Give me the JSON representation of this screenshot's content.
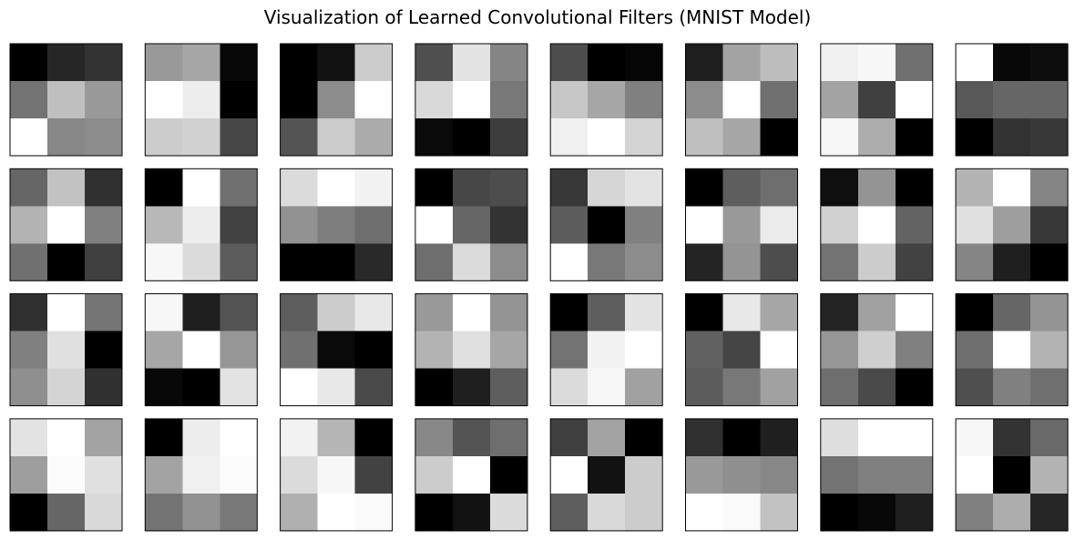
{
  "figure": {
    "title": "Visualization of Learned Convolutional Filters (MNIST Model)"
  },
  "chart_data": {
    "type": "heatmap",
    "title": "Visualization of Learned Convolutional Filters (MNIST Model)",
    "colormap": "gray",
    "axes": "off",
    "rows": 4,
    "cols": 8,
    "filter_size": [
      3,
      3
    ],
    "intensity_scale": "per-filter, 0 = black, 1 = white",
    "filters": [
      [
        [
          0.0,
          0.15,
          0.2
        ],
        [
          0.45,
          0.75,
          0.6
        ],
        [
          1.0,
          0.53,
          0.55
        ]
      ],
      [
        [
          0.6,
          0.65,
          0.03
        ],
        [
          1.0,
          0.93,
          0.0
        ],
        [
          0.8,
          0.82,
          0.28
        ]
      ],
      [
        [
          0.0,
          0.07,
          0.8
        ],
        [
          0.0,
          0.55,
          1.0
        ],
        [
          0.33,
          0.8,
          0.67
        ]
      ],
      [
        [
          0.31,
          0.89,
          0.52
        ],
        [
          0.85,
          1.0,
          0.47
        ],
        [
          0.04,
          0.0,
          0.24
        ]
      ],
      [
        [
          0.3,
          0.0,
          0.02
        ],
        [
          0.78,
          0.65,
          0.5
        ],
        [
          0.94,
          1.0,
          0.83
        ]
      ],
      [
        [
          0.12,
          0.64,
          0.74
        ],
        [
          0.55,
          1.0,
          0.44
        ],
        [
          0.75,
          0.65,
          0.0
        ]
      ],
      [
        [
          0.94,
          0.97,
          0.44
        ],
        [
          0.64,
          0.25,
          1.0
        ],
        [
          0.97,
          0.68,
          0.0
        ]
      ],
      [
        [
          1.0,
          0.03,
          0.05
        ],
        [
          0.35,
          0.4,
          0.4
        ],
        [
          0.0,
          0.2,
          0.22
        ]
      ],
      [
        [
          0.4,
          0.76,
          0.19
        ],
        [
          0.7,
          1.0,
          0.5
        ],
        [
          0.44,
          0.0,
          0.25
        ]
      ],
      [
        [
          0.0,
          1.0,
          0.44
        ],
        [
          0.72,
          0.93,
          0.26
        ],
        [
          0.97,
          0.86,
          0.36
        ]
      ],
      [
        [
          0.86,
          1.0,
          0.95
        ],
        [
          0.57,
          0.49,
          0.43
        ],
        [
          0.0,
          0.0,
          0.16
        ]
      ],
      [
        [
          0.0,
          0.28,
          0.3
        ],
        [
          1.0,
          0.4,
          0.2
        ],
        [
          0.43,
          0.86,
          0.55
        ]
      ],
      [
        [
          0.22,
          0.84,
          0.89
        ],
        [
          0.36,
          0.0,
          0.5
        ],
        [
          1.0,
          0.47,
          0.55
        ]
      ],
      [
        [
          0.0,
          0.37,
          0.43
        ],
        [
          1.0,
          0.6,
          0.92
        ],
        [
          0.14,
          0.58,
          0.3
        ]
      ],
      [
        [
          0.06,
          0.58,
          0.0
        ],
        [
          0.82,
          1.0,
          0.39
        ],
        [
          0.45,
          0.8,
          0.26
        ]
      ],
      [
        [
          0.7,
          1.0,
          0.52
        ],
        [
          0.88,
          0.62,
          0.22
        ],
        [
          0.52,
          0.12,
          0.0
        ]
      ],
      [
        [
          0.19,
          1.0,
          0.46
        ],
        [
          0.5,
          0.88,
          0.0
        ],
        [
          0.56,
          0.83,
          0.19
        ]
      ],
      [
        [
          0.97,
          0.12,
          0.33
        ],
        [
          0.65,
          1.0,
          0.59
        ],
        [
          0.03,
          0.0,
          0.89
        ]
      ],
      [
        [
          0.37,
          0.8,
          0.91
        ],
        [
          0.44,
          0.04,
          0.0
        ],
        [
          1.0,
          0.91,
          0.29
        ]
      ],
      [
        [
          0.6,
          1.0,
          0.58
        ],
        [
          0.7,
          0.88,
          0.65
        ],
        [
          0.0,
          0.12,
          0.37
        ]
      ],
      [
        [
          0.0,
          0.37,
          0.89
        ],
        [
          0.45,
          0.95,
          1.0
        ],
        [
          0.86,
          0.97,
          0.63
        ]
      ],
      [
        [
          0.0,
          0.91,
          0.65
        ],
        [
          0.38,
          0.27,
          1.0
        ],
        [
          0.36,
          0.47,
          0.63
        ]
      ],
      [
        [
          0.14,
          0.63,
          1.0
        ],
        [
          0.59,
          0.81,
          0.5
        ],
        [
          0.43,
          0.29,
          0.0
        ]
      ],
      [
        [
          0.0,
          0.4,
          0.58
        ],
        [
          0.43,
          1.0,
          0.7
        ],
        [
          0.31,
          0.5,
          0.44
        ]
      ],
      [
        [
          0.89,
          1.0,
          0.64
        ],
        [
          0.62,
          0.99,
          0.88
        ],
        [
          0.0,
          0.4,
          0.85
        ]
      ],
      [
        [
          0.0,
          0.93,
          1.0
        ],
        [
          0.64,
          0.94,
          0.99
        ],
        [
          0.45,
          0.57,
          0.47
        ]
      ],
      [
        [
          0.95,
          0.71,
          0.0
        ],
        [
          0.86,
          0.97,
          0.26
        ],
        [
          0.69,
          1.0,
          0.98
        ]
      ],
      [
        [
          0.53,
          0.33,
          0.43
        ],
        [
          0.8,
          1.0,
          0.0
        ],
        [
          0.0,
          0.07,
          0.86
        ]
      ],
      [
        [
          0.25,
          0.64,
          0.0
        ],
        [
          1.0,
          0.07,
          0.8
        ],
        [
          0.37,
          0.85,
          0.8
        ]
      ],
      [
        [
          0.19,
          0.0,
          0.12
        ],
        [
          0.6,
          0.56,
          0.53
        ],
        [
          1.0,
          0.98,
          0.76
        ]
      ],
      [
        [
          0.87,
          1.0,
          1.0
        ],
        [
          0.45,
          0.5,
          0.5
        ],
        [
          0.0,
          0.03,
          0.12
        ]
      ],
      [
        [
          0.97,
          0.2,
          0.41
        ],
        [
          1.0,
          0.0,
          0.7
        ],
        [
          0.5,
          0.68,
          0.15
        ]
      ]
    ]
  }
}
